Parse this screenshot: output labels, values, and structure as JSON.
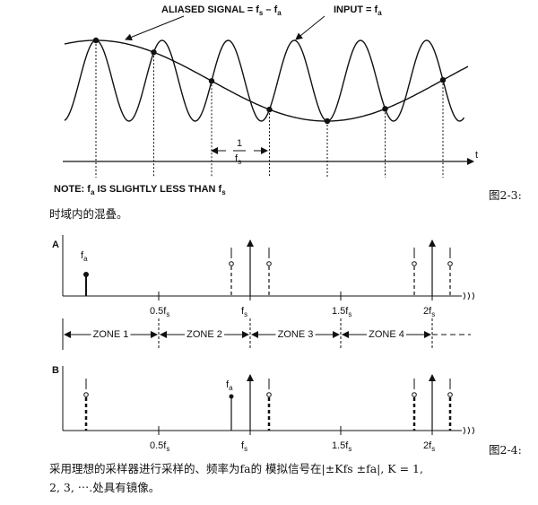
{
  "figure_1": {
    "aliased_label": [
      "ALIASED SIGNAL = f",
      "s",
      " – f",
      "a"
    ],
    "input_label": [
      "INPUT = f",
      "a"
    ],
    "interval_numerator": "1",
    "interval_denominator": [
      "f",
      "s"
    ],
    "axis_label": "t",
    "note": [
      "NOTE: f",
      "a",
      " IS SLIGHTLY LESS THAN f",
      "s"
    ]
  },
  "caption_1": {
    "number": "图2-3:",
    "text": "时域内的混叠。"
  },
  "figure_2": {
    "panel_a": "A",
    "panel_b": "B",
    "fa_label_a": [
      "f",
      "a"
    ],
    "fa_label_b": [
      "f",
      "a"
    ],
    "ticks_a": [
      [
        "0.5f",
        "s"
      ],
      [
        "f",
        "s"
      ],
      [
        "1.5f",
        "s"
      ],
      [
        "2f",
        "s"
      ]
    ],
    "ticks_b": [
      [
        "0.5f",
        "s"
      ],
      [
        "f",
        "s"
      ],
      [
        "1.5f",
        "s"
      ],
      [
        "2f",
        "s"
      ]
    ],
    "zones": [
      "ZONE 1",
      "ZONE 2",
      "ZONE 3",
      "ZONE 4"
    ]
  },
  "caption_2": {
    "number": "图2-4:",
    "lines": [
      "采用理想的采样器进行采样的、频率为fa的 模拟信号在|±Kfs ±fa|, K = 1,",
      "2, 3, ⋯.处具有镜像。"
    ]
  }
}
